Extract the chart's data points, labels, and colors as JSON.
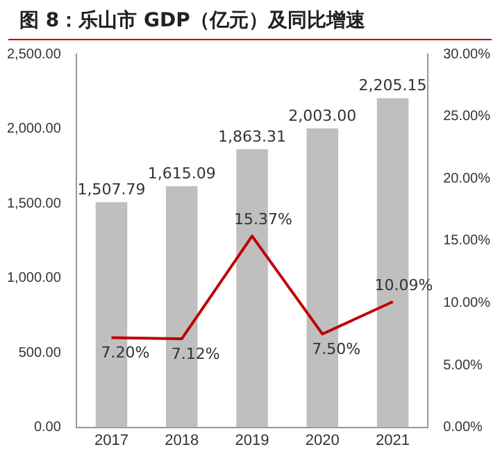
{
  "chart_data": {
    "type": "bar",
    "title": "图 8：乐山市 GDP（亿元）及同比增速",
    "categories": [
      "2017",
      "2018",
      "2019",
      "2020",
      "2021"
    ],
    "series": [
      {
        "color": "#bfbfbf",
        "values": [
          1507.79,
          1615.09,
          1863.31,
          2003.0,
          2205.15
        ],
        "value_labels": [
          "1,507.79",
          "1,615.09",
          "1,863.31",
          "2,003.00",
          "2,205.15"
        ]
      },
      {
        "type": "line",
        "axis": "y2",
        "color": "#c00000",
        "marker": "none",
        "values": [
          7.2,
          7.12,
          15.37,
          7.5,
          10.09
        ],
        "value_labels": [
          "7.20%",
          "7.12%",
          "15.37%",
          "7.50%",
          "10.09%"
        ]
      }
    ],
    "ylim": [
      0,
      2500
    ],
    "yticks": [
      {
        "value": 0,
        "label": "0.00"
      },
      {
        "value": 500,
        "label": "500.00"
      },
      {
        "value": 1000,
        "label": "1,000.00"
      },
      {
        "value": 1500,
        "label": "1,500.00"
      },
      {
        "value": 2000,
        "label": "2,000.00"
      },
      {
        "value": 2500,
        "label": "2,500.00"
      }
    ],
    "y2lim": [
      0,
      30
    ],
    "y2ticks": [
      {
        "value": 0,
        "label": "0.00%"
      },
      {
        "value": 5,
        "label": "5.00%"
      },
      {
        "value": 10,
        "label": "10.00%"
      },
      {
        "value": 15,
        "label": "15.00%"
      },
      {
        "value": 20,
        "label": "20.00%"
      },
      {
        "value": 25,
        "label": "25.00%"
      },
      {
        "value": 30,
        "label": "30.00%"
      }
    ],
    "grid": false,
    "legend": false
  }
}
